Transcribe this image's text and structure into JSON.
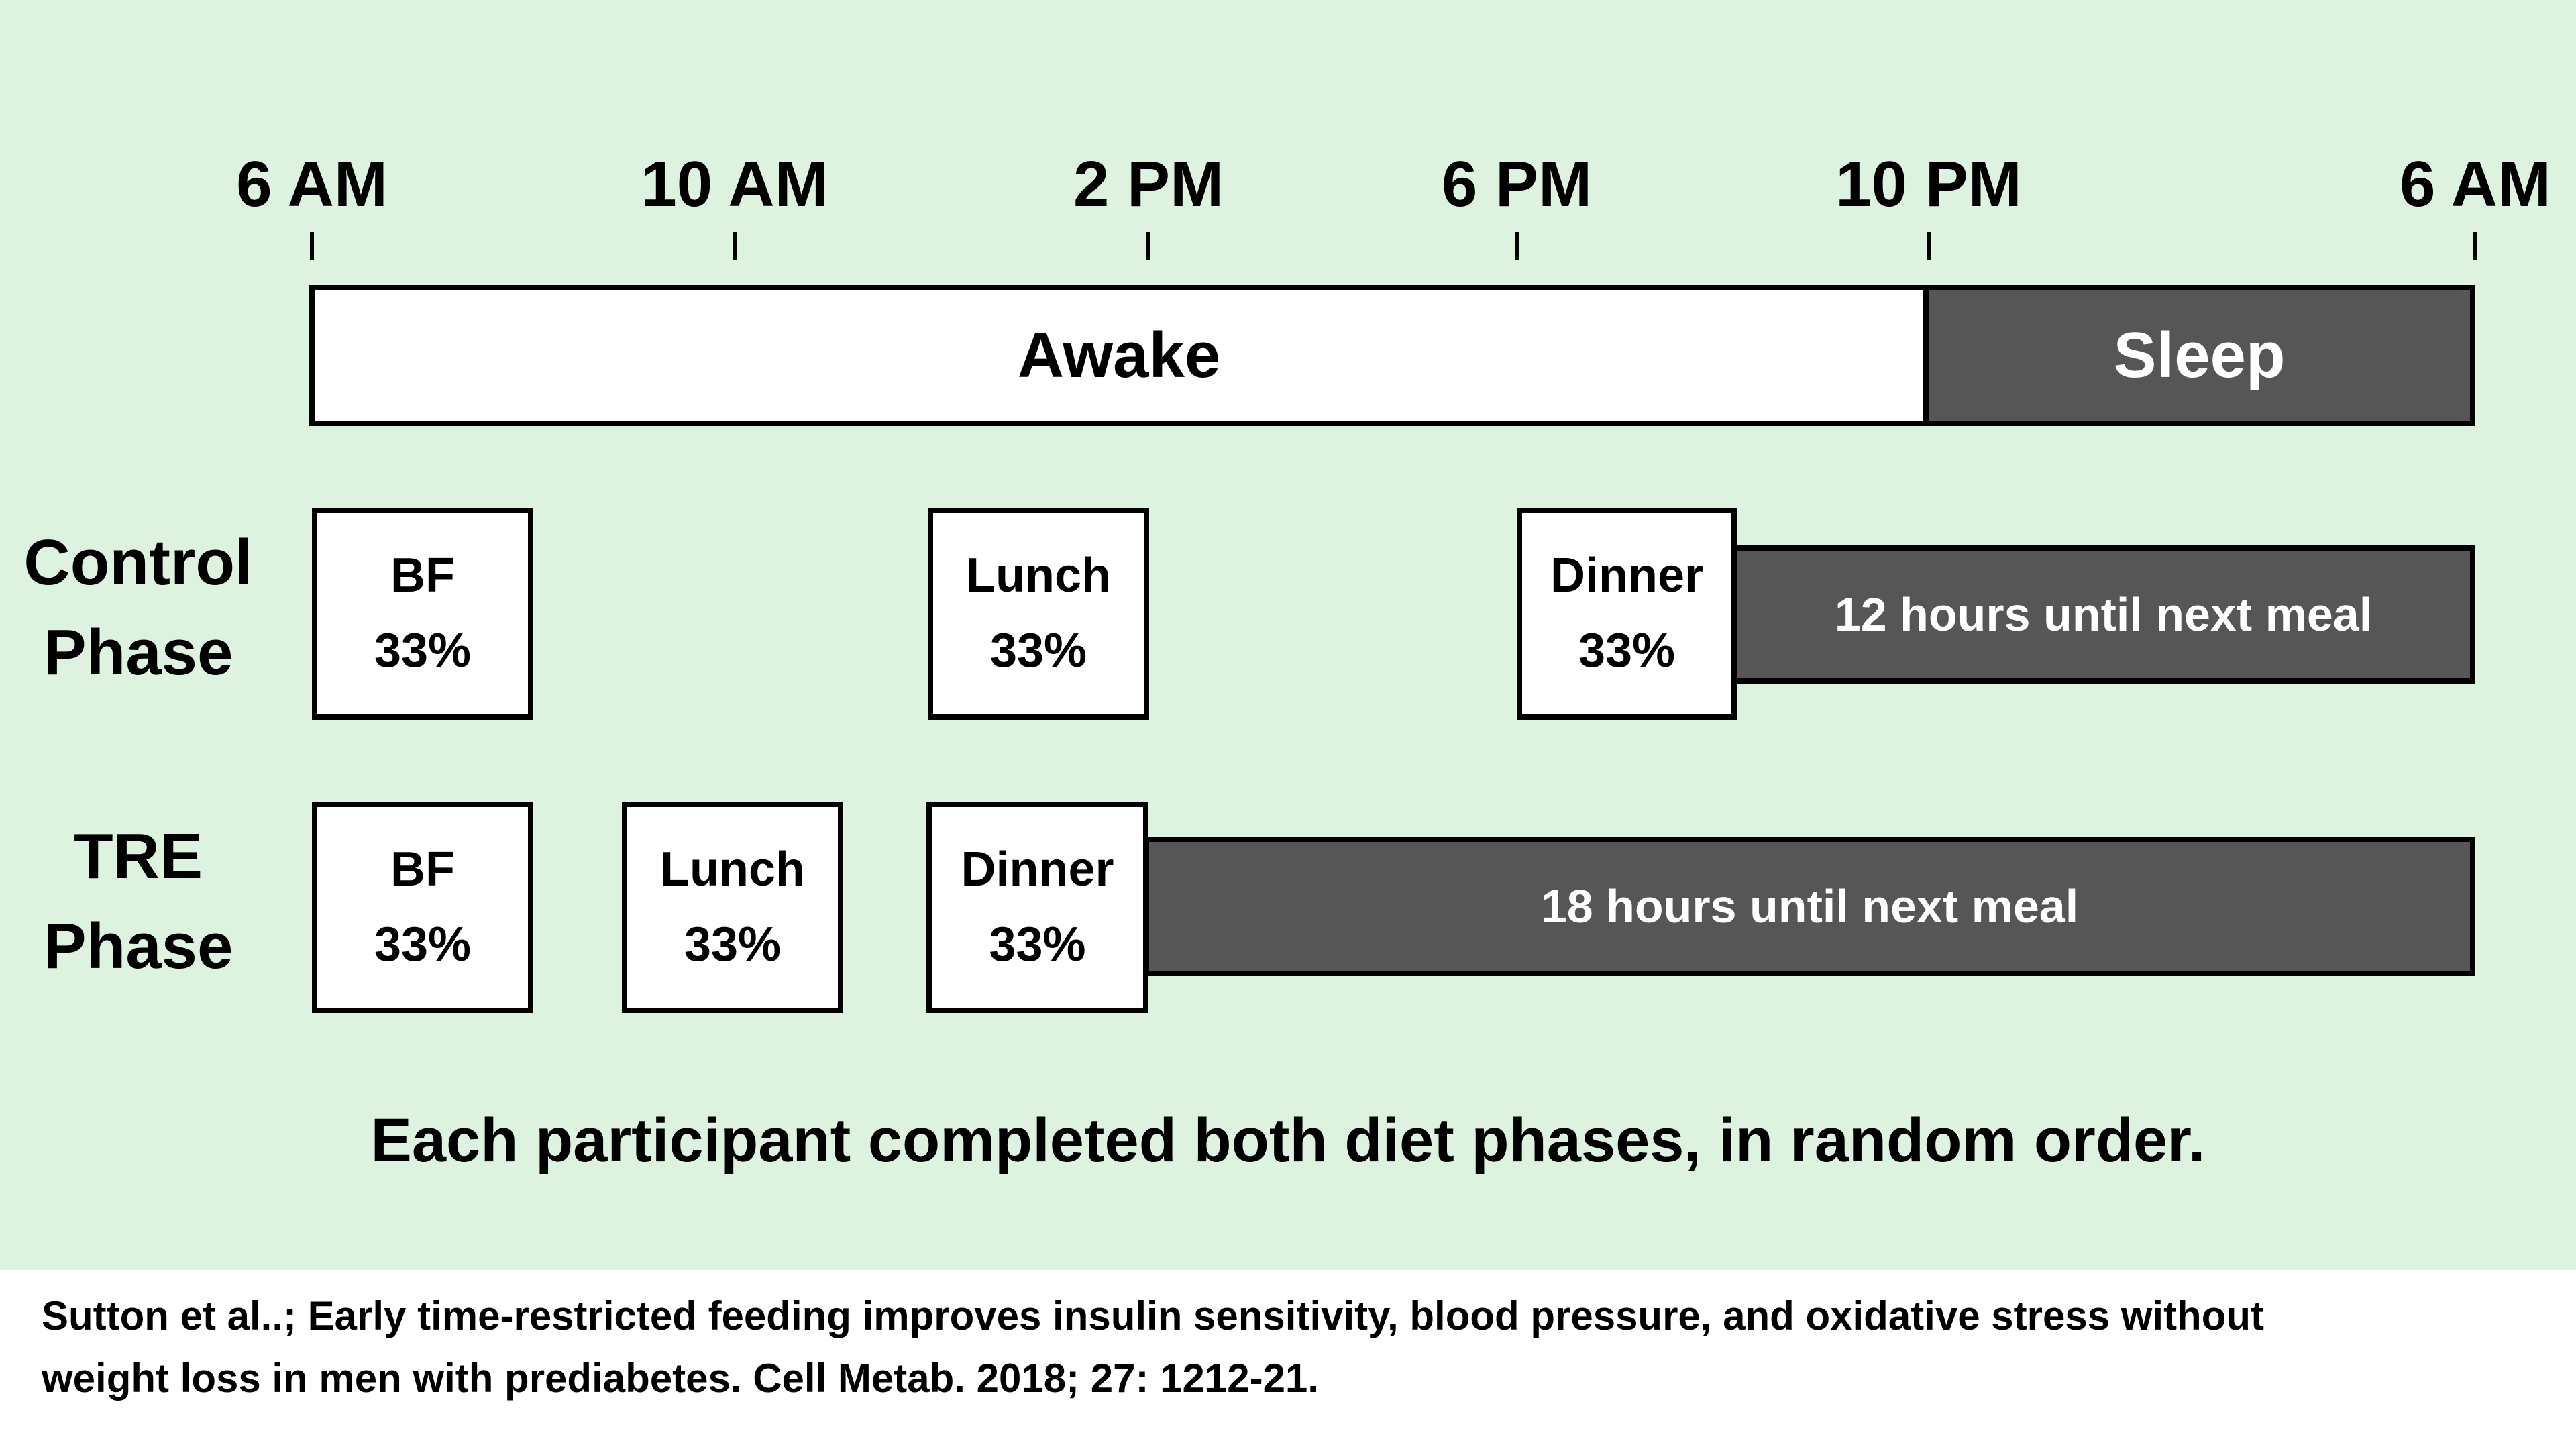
{
  "colors": {
    "background": "#ddf3e0",
    "meal_box_fill": "#ffffff",
    "fasting_fill": "#565656",
    "outline": "#000000",
    "footer_background": "#ffffff",
    "text": "#000000",
    "text_on_dark": "#ffffff"
  },
  "timeline": {
    "tick_labels": [
      "6 AM",
      "10 AM",
      "2 PM",
      "6 PM",
      "10 PM",
      "6 AM"
    ],
    "awake_label": "Awake",
    "sleep_label": "Sleep"
  },
  "control_row": {
    "label_line1": "Control",
    "label_line2": "Phase",
    "boxes": [
      {
        "line1": "BF",
        "line2": "33%"
      },
      {
        "line1": "Lunch",
        "line2": "33%"
      },
      {
        "line1": "Dinner",
        "line2": "33%"
      }
    ],
    "gap_label": "12 hours until next meal"
  },
  "tre_row": {
    "label_line1": "TRE",
    "label_line2": "Phase",
    "boxes": [
      {
        "line1": "BF",
        "line2": "33%"
      },
      {
        "line1": "Lunch",
        "line2": "33%"
      },
      {
        "line1": "Dinner",
        "line2": "33%"
      }
    ],
    "gap_label": "18 hours until next meal"
  },
  "caption": "Each participant completed both diet phases, in random order.",
  "footer_line1": "Sutton et al..; Early time-restricted feeding improves insulin sensitivity, blood pressure, and oxidative stress without",
  "footer_line2": "weight loss in men with prediabetes. Cell Metab. 2018; 27: 1212-21."
}
